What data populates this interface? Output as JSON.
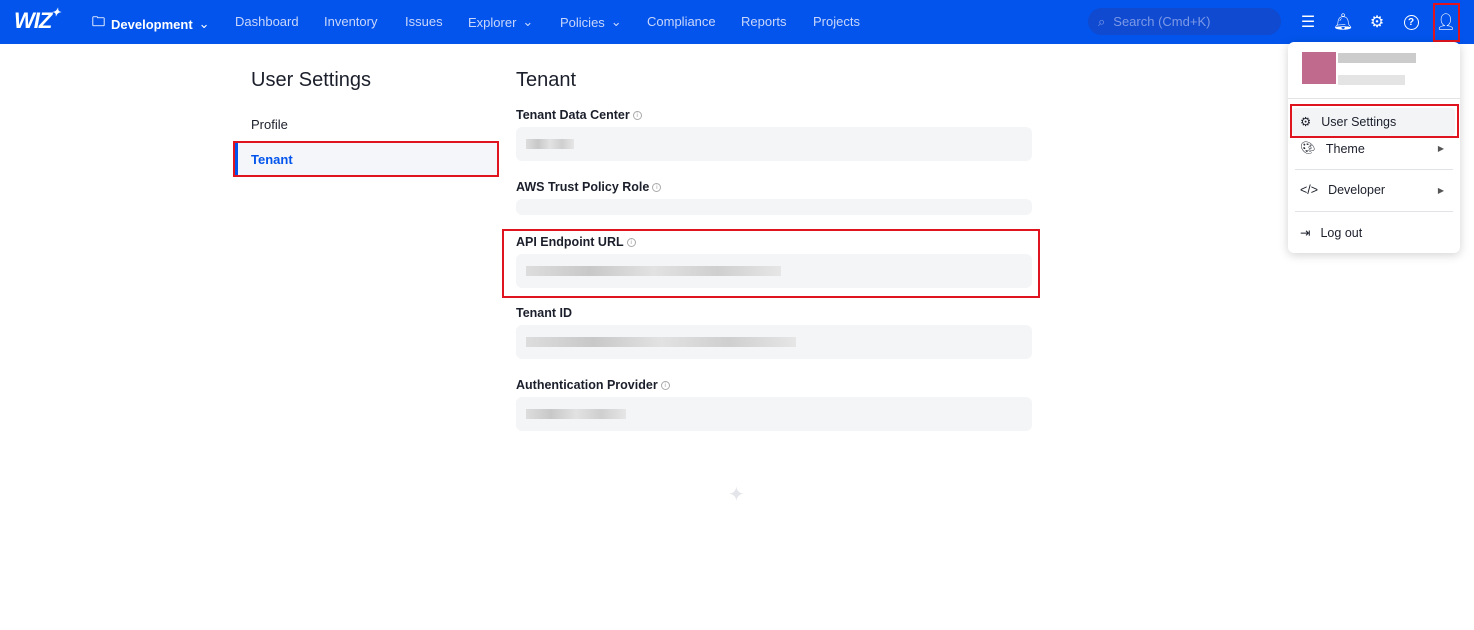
{
  "nav": {
    "logo": "WIZ",
    "project": "Development",
    "items": [
      {
        "label": "Dashboard"
      },
      {
        "label": "Inventory"
      },
      {
        "label": "Issues"
      },
      {
        "label": "Explorer"
      },
      {
        "label": "Policies"
      },
      {
        "label": "Compliance"
      },
      {
        "label": "Reports"
      },
      {
        "label": "Projects"
      }
    ],
    "search_placeholder": "Search (Cmd+K)",
    "brand_color": "#0254ec"
  },
  "sidebar": {
    "title": "User Settings",
    "items": [
      {
        "label": "Profile"
      },
      {
        "label": "Tenant",
        "active": true
      }
    ]
  },
  "main": {
    "title": "Tenant",
    "fields": [
      {
        "label": "Tenant Data Center"
      },
      {
        "label": "AWS Trust Policy Role"
      },
      {
        "label": "API Endpoint URL"
      },
      {
        "label": "Tenant ID"
      },
      {
        "label": "Authentication Provider"
      }
    ]
  },
  "menu": {
    "items": [
      {
        "label": "User Settings"
      },
      {
        "label": "Theme"
      },
      {
        "label": "Developer"
      },
      {
        "label": "Log out"
      }
    ]
  }
}
